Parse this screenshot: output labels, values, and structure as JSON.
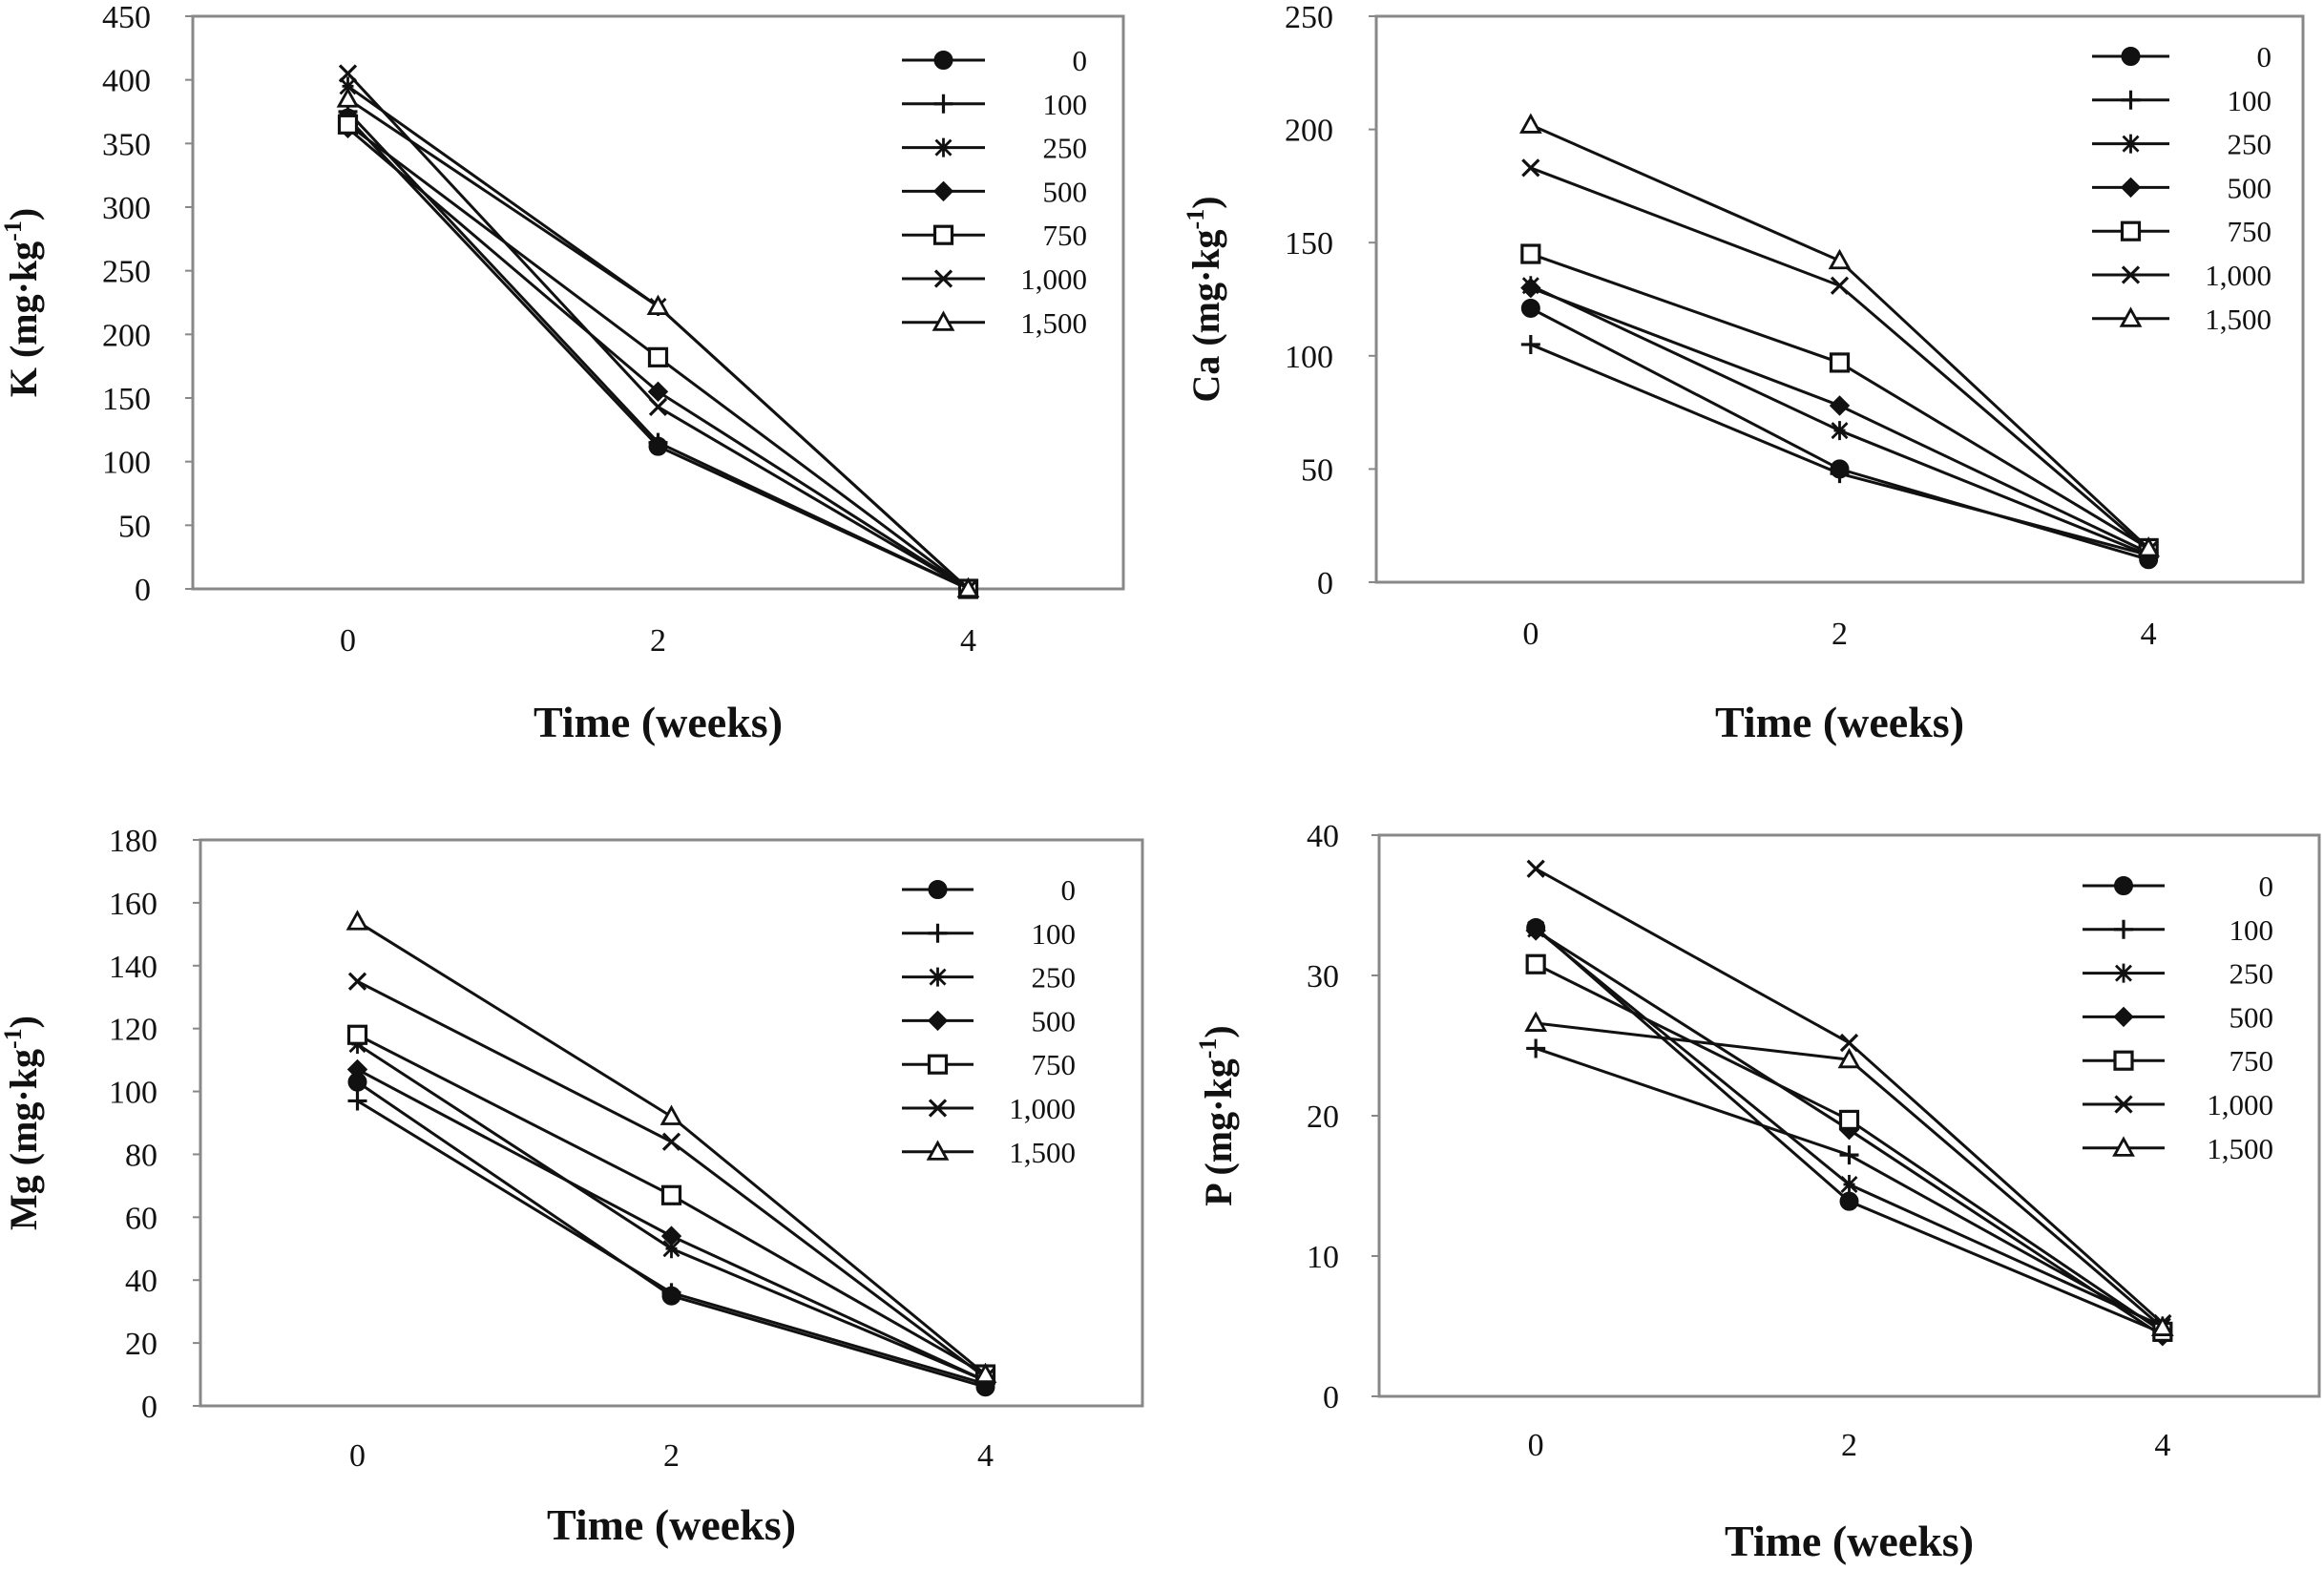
{
  "chart_data": [
    {
      "type": "line",
      "panel": "K",
      "ylabel": {
        "base": "K (mg·kg",
        "sup": "-1",
        "close": ")"
      },
      "xlabel": "Time (weeks)",
      "x": [
        0,
        2,
        4
      ],
      "ylim": [
        0,
        450
      ],
      "yticks": [
        "0",
        "50",
        "100",
        "150",
        "200",
        "250",
        "300",
        "350",
        "400",
        "450"
      ],
      "xticks": [
        "0",
        "2",
        "4"
      ],
      "legend_position": "top-right",
      "series": [
        {
          "name": "0",
          "marker": "circle",
          "values": [
            370,
            112,
            0
          ]
        },
        {
          "name": "100",
          "marker": "plus",
          "values": [
            375,
            115,
            0
          ]
        },
        {
          "name": "250",
          "marker": "asterisk",
          "values": [
            395,
            222,
            0
          ]
        },
        {
          "name": "500",
          "marker": "diamond",
          "values": [
            362,
            155,
            0
          ]
        },
        {
          "name": "750",
          "marker": "square",
          "values": [
            365,
            182,
            0
          ]
        },
        {
          "name": "1,000",
          "marker": "x",
          "values": [
            405,
            143,
            0
          ]
        },
        {
          "name": "1,500",
          "marker": "triangle",
          "values": [
            385,
            222,
            0
          ]
        }
      ]
    },
    {
      "type": "line",
      "panel": "Ca",
      "ylabel": {
        "base": "Ca (mg·kg",
        "sup": "-1",
        "close": ")"
      },
      "xlabel": "Time (weeks)",
      "x": [
        0,
        2,
        4
      ],
      "ylim": [
        0,
        250
      ],
      "yticks": [
        "0",
        "50",
        "100",
        "150",
        "200",
        "250"
      ],
      "xticks": [
        "0",
        "2",
        "4"
      ],
      "legend_position": "top-right",
      "series": [
        {
          "name": "0",
          "marker": "circle",
          "values": [
            121,
            50,
            10
          ]
        },
        {
          "name": "100",
          "marker": "plus",
          "values": [
            105,
            48,
            12
          ]
        },
        {
          "name": "250",
          "marker": "asterisk",
          "values": [
            131,
            67,
            12
          ]
        },
        {
          "name": "500",
          "marker": "diamond",
          "values": [
            130,
            78,
            13
          ]
        },
        {
          "name": "750",
          "marker": "square",
          "values": [
            145,
            97,
            15
          ]
        },
        {
          "name": "1,000",
          "marker": "x",
          "values": [
            183,
            131,
            14
          ]
        },
        {
          "name": "1,500",
          "marker": "triangle",
          "values": [
            202,
            142,
            15
          ]
        }
      ]
    },
    {
      "type": "line",
      "panel": "Mg",
      "ylabel": {
        "base": "Mg (mg·kg",
        "sup": "-1",
        "close": ")"
      },
      "xlabel": "Time (weeks)",
      "x": [
        0,
        2,
        4
      ],
      "ylim": [
        0,
        180
      ],
      "yticks": [
        "0",
        "20",
        "40",
        "60",
        "80",
        "100",
        "120",
        "140",
        "160",
        "180"
      ],
      "xticks": [
        "0",
        "2",
        "4"
      ],
      "legend_position": "top-right",
      "series": [
        {
          "name": "0",
          "marker": "circle",
          "values": [
            103,
            35,
            6
          ]
        },
        {
          "name": "100",
          "marker": "plus",
          "values": [
            97,
            36,
            7
          ]
        },
        {
          "name": "250",
          "marker": "asterisk",
          "values": [
            115,
            50,
            8
          ]
        },
        {
          "name": "500",
          "marker": "diamond",
          "values": [
            107,
            54,
            8
          ]
        },
        {
          "name": "750",
          "marker": "square",
          "values": [
            118,
            67,
            10
          ]
        },
        {
          "name": "1,000",
          "marker": "x",
          "values": [
            135,
            84,
            9
          ]
        },
        {
          "name": "1,500",
          "marker": "triangle",
          "values": [
            154,
            92,
            10
          ]
        }
      ]
    },
    {
      "type": "line",
      "panel": "P",
      "ylabel": {
        "base": "P (mg·kg",
        "sup": "-1",
        "close": ")"
      },
      "xlabel": "Time (weeks)",
      "x": [
        0,
        2,
        4
      ],
      "ylim": [
        0,
        40
      ],
      "yticks": [
        "0",
        "10",
        "20",
        "30",
        "40"
      ],
      "xticks": [
        "0",
        "2",
        "4"
      ],
      "legend_position": "top-right",
      "series": [
        {
          "name": "0",
          "marker": "circle",
          "values": [
            33.4,
            13.9,
            4.5
          ]
        },
        {
          "name": "100",
          "marker": "plus",
          "values": [
            24.8,
            17.2,
            4.8
          ]
        },
        {
          "name": "250",
          "marker": "asterisk",
          "values": [
            33.3,
            15.1,
            5.0
          ]
        },
        {
          "name": "500",
          "marker": "diamond",
          "values": [
            33.2,
            19.0,
            4.3
          ]
        },
        {
          "name": "750",
          "marker": "square",
          "values": [
            30.8,
            19.7,
            4.6
          ]
        },
        {
          "name": "1,000",
          "marker": "x",
          "values": [
            37.6,
            25.2,
            5.2
          ]
        },
        {
          "name": "1,500",
          "marker": "triangle",
          "values": [
            26.6,
            24.0,
            4.9
          ]
        }
      ]
    }
  ]
}
